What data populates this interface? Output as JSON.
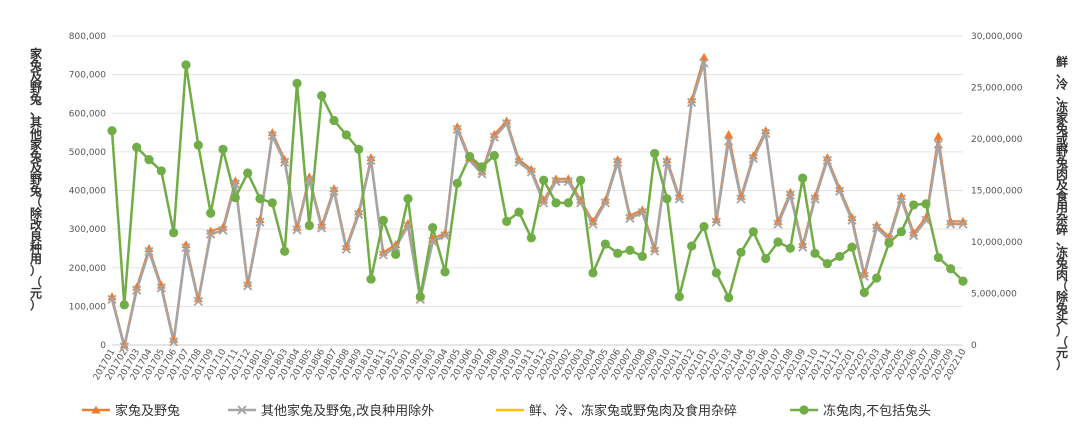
{
  "chart_data": {
    "type": "line",
    "title": "",
    "y_left_label": "家兔及野兔、其他家兔及野兔（除改良种用）（元）",
    "y_right_label": "鲜、冷、冻家兔或野兔肉及食用杂碎、冻兔肉（除兔头）（元）",
    "y_left_range": [
      0,
      800000
    ],
    "y_right_range": [
      0,
      30000000
    ],
    "y_left_ticks": [
      "0",
      "100,000",
      "200,000",
      "300,000",
      "400,000",
      "500,000",
      "600,000",
      "700,000",
      "800,000"
    ],
    "y_right_ticks": [
      "0",
      "5,000,000",
      "10,000,000",
      "15,000,000",
      "20,000,000",
      "25,000,000",
      "30,000,000"
    ],
    "grid": true,
    "legend_position": "bottom",
    "x": [
      "201701",
      "201702",
      "201703",
      "201704",
      "201705",
      "201706",
      "201707",
      "201708",
      "201709",
      "201710",
      "201711",
      "201712",
      "201801",
      "201802",
      "201803",
      "201804",
      "201805",
      "201806",
      "201807",
      "201808",
      "201809",
      "201810",
      "201811",
      "201812",
      "201901",
      "201902",
      "201903",
      "201904",
      "201905",
      "201906",
      "201907",
      "201908",
      "201909",
      "201910",
      "201911",
      "201912",
      "202001",
      "202002",
      "202003",
      "202004",
      "202005",
      "202006",
      "202007",
      "202008",
      "202009",
      "202010",
      "202011",
      "202012",
      "202101",
      "202102",
      "202103",
      "202104",
      "202105",
      "202106",
      "202107",
      "202108",
      "202109",
      "202110",
      "202111",
      "202112",
      "202201",
      "202202",
      "202203",
      "202204",
      "202205",
      "202206",
      "202207",
      "202208",
      "202209",
      "202210"
    ],
    "series": [
      {
        "name": "家兔及野兔",
        "axis": "left",
        "color": "#ED7D31",
        "marker": "triangle",
        "values": [
          125000,
          0,
          150000,
          250000,
          155000,
          15000,
          260000,
          120000,
          295000,
          305000,
          425000,
          160000,
          325000,
          550000,
          480000,
          305000,
          435000,
          310000,
          405000,
          255000,
          345000,
          485000,
          240000,
          260000,
          315000,
          125000,
          275000,
          290000,
          565000,
          485000,
          450000,
          545000,
          580000,
          480000,
          455000,
          375000,
          430000,
          430000,
          375000,
          320000,
          375000,
          480000,
          335000,
          350000,
          250000,
          480000,
          385000,
          635000,
          745000,
          325000,
          545000,
          385000,
          490000,
          555000,
          320000,
          395000,
          260000,
          385000,
          485000,
          405000,
          330000,
          185000,
          310000,
          280000,
          385000,
          290000,
          330000,
          540000,
          320000,
          320000
        ]
      },
      {
        "name": "其他家兔及野兔,改良种用除外",
        "axis": "left",
        "color": "#A5A5A5",
        "marker": "x",
        "values": [
          118000,
          -5000,
          142000,
          242000,
          148000,
          8000,
          252000,
          113000,
          287000,
          297000,
          417000,
          153000,
          318000,
          542000,
          473000,
          298000,
          428000,
          303000,
          398000,
          248000,
          338000,
          478000,
          233000,
          253000,
          308000,
          118000,
          268000,
          283000,
          558000,
          478000,
          443000,
          538000,
          573000,
          473000,
          448000,
          368000,
          423000,
          423000,
          368000,
          313000,
          368000,
          473000,
          328000,
          343000,
          243000,
          473000,
          378000,
          628000,
          730000,
          318000,
          528000,
          378000,
          483000,
          548000,
          313000,
          388000,
          253000,
          378000,
          478000,
          398000,
          323000,
          178000,
          303000,
          273000,
          378000,
          283000,
          323000,
          520000,
          313000,
          313000
        ]
      },
      {
        "name": "鲜、冷、冻家兔或野兔肉及食用杂碎",
        "axis": "right",
        "color": "#FFC000",
        "marker": "dash",
        "values": [
          20800000,
          3900000,
          19200000,
          18000000,
          16900000,
          10900000,
          27200000,
          19400000,
          12800000,
          19000000,
          14300000,
          16700000,
          14200000,
          13800000,
          9100000,
          25400000,
          11600000,
          24200000,
          21800000,
          20400000,
          19000000,
          6400000,
          12100000,
          8800000,
          14200000,
          4700000,
          11400000,
          7100000,
          15700000,
          18300000,
          17300000,
          18400000,
          12000000,
          12900000,
          10400000,
          16000000,
          13800000,
          13800000,
          16000000,
          7000000,
          9800000,
          8900000,
          9200000,
          8600000,
          18600000,
          14200000,
          4700000,
          9600000,
          11500000,
          7000000,
          4600000,
          9000000,
          11000000,
          8400000,
          10000000,
          9400000,
          16200000,
          8900000,
          7900000,
          8600000,
          9500000,
          5100000,
          6500000,
          9900000,
          11000000,
          13600000,
          13700000,
          8500000,
          7400000,
          6200000
        ]
      },
      {
        "name": "冻兔肉,不包括兔头",
        "axis": "right",
        "color": "#70AD47",
        "marker": "circle",
        "values": [
          20800000,
          3900000,
          19200000,
          18000000,
          16900000,
          10900000,
          27200000,
          19400000,
          12800000,
          19000000,
          14300000,
          16700000,
          14200000,
          13800000,
          9100000,
          25400000,
          11600000,
          24200000,
          21800000,
          20400000,
          19000000,
          6400000,
          12100000,
          8800000,
          14200000,
          4700000,
          11400000,
          7100000,
          15700000,
          18300000,
          17300000,
          18400000,
          12000000,
          12900000,
          10400000,
          16000000,
          13800000,
          13800000,
          16000000,
          7000000,
          9800000,
          8900000,
          9200000,
          8600000,
          18600000,
          14200000,
          4700000,
          9600000,
          11500000,
          7000000,
          4600000,
          9000000,
          11000000,
          8400000,
          10000000,
          9400000,
          16200000,
          8900000,
          7900000,
          8600000,
          9500000,
          5100000,
          6500000,
          9900000,
          11000000,
          13600000,
          13700000,
          8500000,
          7400000,
          6200000
        ]
      }
    ]
  }
}
